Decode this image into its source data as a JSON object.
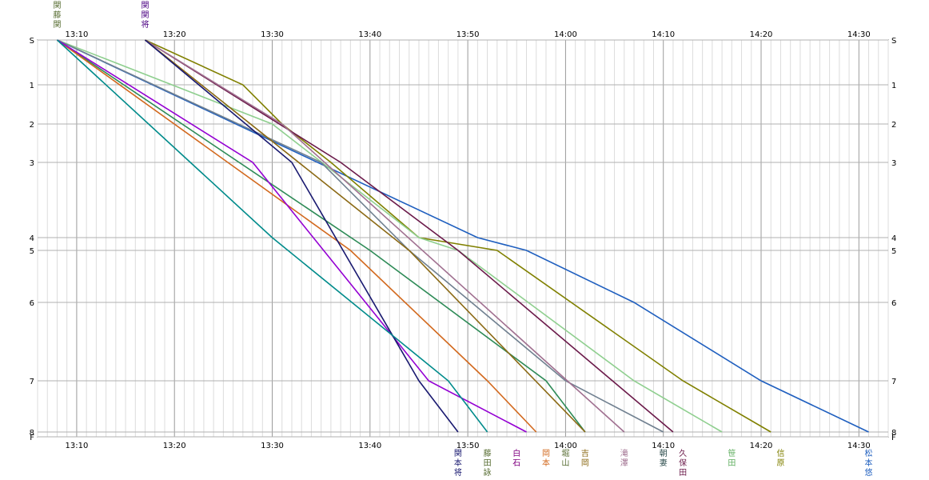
{
  "chart_data": {
    "type": "line",
    "x_ticks": [
      "13:10",
      "13:20",
      "13:30",
      "13:40",
      "13:50",
      "14:00",
      "14:10",
      "14:20",
      "14:30"
    ],
    "x_range": [
      "13:06",
      "14:33"
    ],
    "y_ticks": [
      "S",
      "1",
      "2",
      "3",
      "4",
      "5",
      "6",
      "7",
      "8",
      "F"
    ],
    "grid": true,
    "start_labels": [
      {
        "t": "13:08",
        "text": "関藤関",
        "color": "#556b2f"
      },
      {
        "t": "13:17",
        "text": "関関将",
        "color": "#4b0082"
      }
    ],
    "series": [
      {
        "color": "#1f5fbf",
        "points": [
          [
            "13:08",
            0
          ],
          [
            "13:51",
            4
          ],
          [
            "13:56",
            5
          ],
          [
            "14:07",
            6
          ],
          [
            "14:20",
            7
          ],
          [
            "14:31",
            8
          ]
        ]
      },
      {
        "color": "#808000",
        "points": [
          [
            "13:17",
            0
          ],
          [
            "13:27",
            1
          ],
          [
            "13:31",
            2
          ],
          [
            "13:36",
            3
          ],
          [
            "13:45",
            4
          ],
          [
            "13:53",
            5
          ],
          [
            "14:12",
            7
          ],
          [
            "14:21",
            8
          ]
        ]
      },
      {
        "color": "#8fcf8f",
        "points": [
          [
            "13:08",
            0
          ],
          [
            "13:30",
            2
          ],
          [
            "13:45",
            4
          ],
          [
            "13:49",
            5
          ],
          [
            "14:07",
            7
          ],
          [
            "14:16",
            8
          ]
        ]
      },
      {
        "color": "#6b1a4a",
        "points": [
          [
            "13:17",
            0
          ],
          [
            "13:37",
            3
          ],
          [
            "13:49",
            5
          ],
          [
            "14:11",
            8
          ]
        ]
      },
      {
        "color": "#708090",
        "points": [
          [
            "13:08",
            0
          ],
          [
            "13:35",
            3
          ],
          [
            "13:44",
            5
          ],
          [
            "14:00",
            7
          ],
          [
            "14:10",
            8
          ]
        ]
      },
      {
        "color": "#a07090",
        "points": [
          [
            "13:17",
            0
          ],
          [
            "13:31",
            2
          ],
          [
            "14:06",
            8
          ]
        ]
      },
      {
        "color": "#2e8b57",
        "points": [
          [
            "13:08",
            0
          ],
          [
            "13:40",
            5
          ],
          [
            "13:58",
            7
          ],
          [
            "14:02",
            8
          ]
        ]
      },
      {
        "color": "#8b6914",
        "points": [
          [
            "13:17",
            0
          ],
          [
            "13:44",
            5
          ],
          [
            "14:02",
            8
          ]
        ]
      },
      {
        "color": "#d2691e",
        "points": [
          [
            "13:08",
            0
          ],
          [
            "13:38",
            5
          ],
          [
            "13:52",
            7
          ],
          [
            "13:57",
            8
          ]
        ]
      },
      {
        "color": "#9400d3",
        "points": [
          [
            "13:08",
            0
          ],
          [
            "13:28",
            3
          ],
          [
            "13:46",
            7
          ],
          [
            "13:56",
            8
          ]
        ]
      },
      {
        "color": "#191970",
        "points": [
          [
            "13:17",
            0
          ],
          [
            "13:32",
            3
          ],
          [
            "13:45",
            7
          ],
          [
            "13:49",
            8
          ]
        ]
      },
      {
        "color": "#008b8b",
        "points": [
          [
            "13:08",
            0
          ],
          [
            "13:30",
            4
          ],
          [
            "13:48",
            7
          ],
          [
            "13:52",
            8
          ]
        ]
      }
    ],
    "finish_labels": [
      {
        "t": "13:49",
        "text": "関本将",
        "color": "#191970"
      },
      {
        "t": "13:52",
        "text": "藤田詠",
        "color": "#556b2f"
      },
      {
        "t": "13:55",
        "text": "白石",
        "color": "#800080"
      },
      {
        "t": "13:58",
        "text": "岡本",
        "color": "#d2691e"
      },
      {
        "t": "14:00",
        "text": "堀山",
        "color": "#556b2f"
      },
      {
        "t": "14:02",
        "text": "吉岡",
        "color": "#8b6914"
      },
      {
        "t": "14:06",
        "text": "滝澤",
        "color": "#a07090"
      },
      {
        "t": "14:10",
        "text": "朝妻",
        "color": "#2f4f4f"
      },
      {
        "t": "14:12",
        "text": "久保田",
        "color": "#6b1a4a"
      },
      {
        "t": "14:17",
        "text": "笹田",
        "color": "#5fae5f"
      },
      {
        "t": "14:22",
        "text": "信原",
        "color": "#808000"
      },
      {
        "t": "14:31",
        "text": "松本悠",
        "color": "#1f5fbf"
      }
    ]
  }
}
